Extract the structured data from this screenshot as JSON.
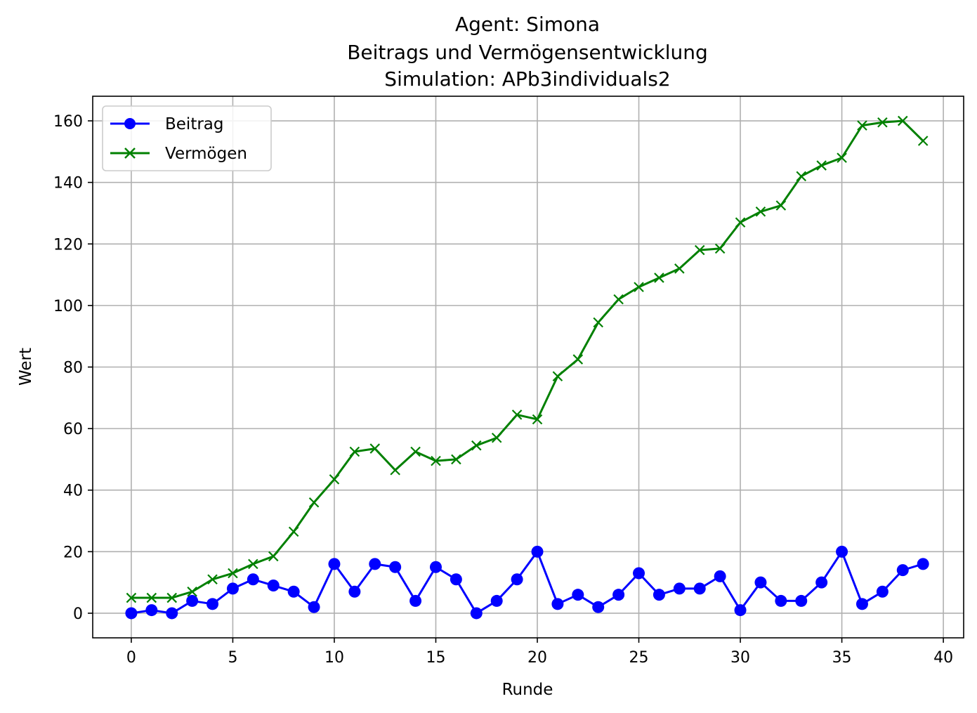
{
  "chart_data": {
    "type": "line",
    "title_lines": [
      "Agent: Simona",
      "Beitrags und Vermögensentwicklung",
      "Simulation: APb3individuals2"
    ],
    "xlabel": "Runde",
    "ylabel": "Wert",
    "xlim": [
      -1.9,
      41.0
    ],
    "ylim": [
      -8,
      168
    ],
    "xticks": [
      0,
      5,
      10,
      15,
      20,
      25,
      30,
      35,
      40
    ],
    "yticks": [
      0,
      20,
      40,
      60,
      80,
      100,
      120,
      140,
      160
    ],
    "grid": true,
    "legend_position": "top-left",
    "x": [
      0,
      1,
      2,
      3,
      4,
      5,
      6,
      7,
      8,
      9,
      10,
      11,
      12,
      13,
      14,
      15,
      16,
      17,
      18,
      19,
      20,
      21,
      22,
      23,
      24,
      25,
      26,
      27,
      28,
      29,
      30,
      31,
      32,
      33,
      34,
      35,
      36,
      37,
      38,
      39
    ],
    "series": [
      {
        "name": "Beitrag",
        "color": "#0000ff",
        "marker": "circle",
        "values": [
          0,
          1,
          0,
          4,
          3,
          8,
          11,
          9,
          7,
          2,
          16,
          7,
          16,
          15,
          4,
          15,
          11,
          0,
          4,
          11,
          20,
          3,
          6,
          2,
          6,
          13,
          6,
          8,
          8,
          12,
          1,
          10,
          4,
          4,
          10,
          20,
          3,
          7,
          14,
          16
        ]
      },
      {
        "name": "Vermögen",
        "color": "#008000",
        "marker": "x",
        "values": [
          5,
          5,
          5,
          7,
          11,
          13,
          16,
          18.5,
          26.5,
          36,
          43.5,
          52.5,
          53.5,
          46.5,
          52.5,
          49.5,
          50,
          54.5,
          57,
          64.5,
          63,
          77,
          82.5,
          94.5,
          102,
          106,
          109,
          112,
          118,
          118.5,
          127,
          130.5,
          132.5,
          142,
          145.5,
          148,
          158.5,
          159.5,
          160,
          153.5
        ]
      }
    ]
  }
}
